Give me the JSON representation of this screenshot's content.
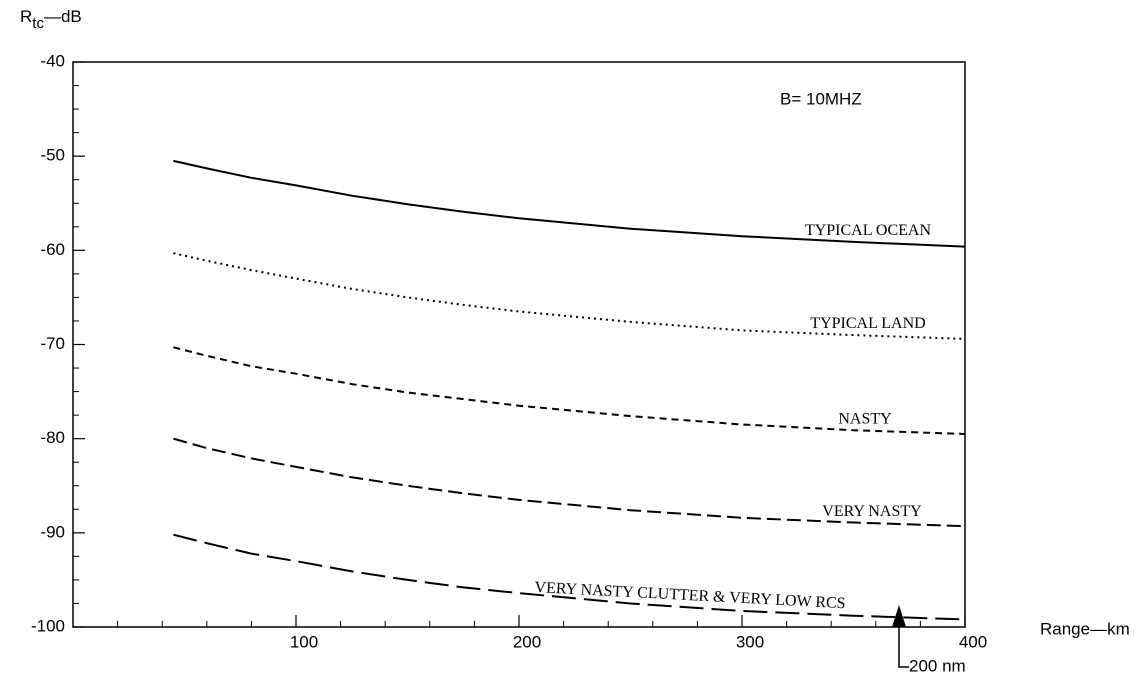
{
  "chart_data": {
    "type": "line",
    "y_label": {
      "main": "R",
      "sub": "tc",
      "unit": "—dB"
    },
    "x_label": "Range—km",
    "annotation": "B= 10MHZ",
    "marker": {
      "x": 370.4,
      "label": "200 nm"
    },
    "x": [
      45,
      60,
      80,
      100,
      125,
      150,
      175,
      200,
      250,
      300,
      350,
      400
    ],
    "series": [
      {
        "name": "TYPICAL OCEAN",
        "color": "#000000",
        "style": "solid",
        "values": [
          -50.5,
          -51.3,
          -52.3,
          -53.1,
          -54.2,
          -55.1,
          -55.9,
          -56.6,
          -57.7,
          -58.5,
          -59.1,
          -59.6
        ]
      },
      {
        "name": "TYPICAL LAND",
        "color": "#000000",
        "style": "dotted",
        "values": [
          -60.3,
          -61.1,
          -62.1,
          -63,
          -64.1,
          -65,
          -65.8,
          -66.5,
          -67.6,
          -68.5,
          -69,
          -69.4
        ]
      },
      {
        "name": "NASTY",
        "color": "#000000",
        "style": "dashed",
        "values": [
          -70.3,
          -71.2,
          -72.3,
          -73.1,
          -74.2,
          -75.1,
          -75.8,
          -76.5,
          -77.6,
          -78.5,
          -79.1,
          -79.5
        ]
      },
      {
        "name": "VERY NASTY",
        "color": "#000000",
        "style": "long-dashed",
        "values": [
          -80,
          -81,
          -82.1,
          -83,
          -84.1,
          -85,
          -85.8,
          -86.5,
          -87.6,
          -88.4,
          -88.9,
          -89.3
        ]
      },
      {
        "name": "VERY NASTY CLUTTER & VERY LOW RCS",
        "color": "#000000",
        "style": "longer-dashed",
        "values": [
          -90.2,
          -91.1,
          -92.2,
          -93,
          -94.1,
          -95,
          -95.8,
          -96.4,
          -97.5,
          -98.3,
          -98.8,
          -99.2
        ]
      }
    ],
    "xlim": [
      0,
      400
    ],
    "ylim": [
      -100,
      -40
    ],
    "xticks": [
      100,
      200,
      300,
      400
    ],
    "yticks": [
      -100,
      -90,
      -80,
      -70,
      -60,
      -50,
      -40
    ],
    "xticks_minor": [
      20,
      40,
      60,
      80,
      120,
      140,
      160,
      180,
      220,
      240,
      260,
      280,
      320,
      340,
      360,
      380
    ],
    "yticks_minor": [
      -97.5,
      -95,
      -92.5,
      -87.5,
      -85,
      -82.5,
      -77.5,
      -75,
      -72.5,
      -67.5,
      -65,
      -62.5,
      -57.5,
      -55,
      -52.5,
      -47.5,
      -45,
      -42.5
    ],
    "grid": false
  }
}
